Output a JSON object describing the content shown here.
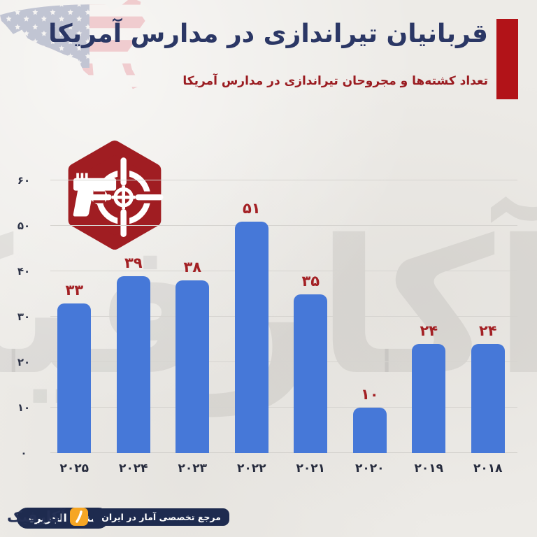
{
  "header": {
    "title": "قربانیان تیراندازی در مدارس آمریکا",
    "subtitle": "تعداد کشته‌ها و مجروحان تیراندازی در مدارس آمریکا"
  },
  "watermark_text": "آکارفیک",
  "chart_data": {
    "type": "bar",
    "title": "قربانیان تیراندازی در مدارس آمریکا",
    "subtitle": "تعداد کشته‌ها و مجروحان تیراندازی در مدارس آمریکا",
    "categories": [
      "۲۰۱۸",
      "۲۰۱۹",
      "۲۰۲۰",
      "۲۰۲۱",
      "۲۰۲۲",
      "۲۰۲۳",
      "۲۰۲۴",
      "۲۰۲۵"
    ],
    "categories_en": [
      2018,
      2019,
      2020,
      2021,
      2022,
      2023,
      2024,
      2025
    ],
    "values": [
      24,
      24,
      10,
      35,
      51,
      38,
      39,
      33
    ],
    "value_labels": [
      "۲۴",
      "۲۴",
      "۱۰",
      "۳۵",
      "۵۱",
      "۳۸",
      "۳۹",
      "۳۳"
    ],
    "ylim": [
      0,
      60
    ],
    "tick_values": [
      0,
      10,
      20,
      30,
      40,
      50,
      60
    ],
    "tick_labels": [
      "۰",
      "۱۰",
      "۲۰",
      "۳۰",
      "۴۰",
      "۵۰",
      "۶۰"
    ],
    "grid": true,
    "legend": false,
    "xlabel": "",
    "ylabel": ""
  },
  "footer": {
    "source": "منبع: الجزیره",
    "brand_name": "آکارفیک",
    "brand_tagline": "مرجع تخصصی آمار در ایران"
  },
  "colors": {
    "background": "#edebe7",
    "title_navy": "#2b3765",
    "subtitle_red": "#9a1b20",
    "accent_red": "#b21318",
    "badge_red": "#a01d22",
    "bar_blue": "#4678d8",
    "value_red": "#a32024",
    "axis_text": "#2d3347",
    "gridline": "#d6d4d0",
    "pill_navy": "#1e2b4f",
    "brand_orange": "#f6a624"
  }
}
